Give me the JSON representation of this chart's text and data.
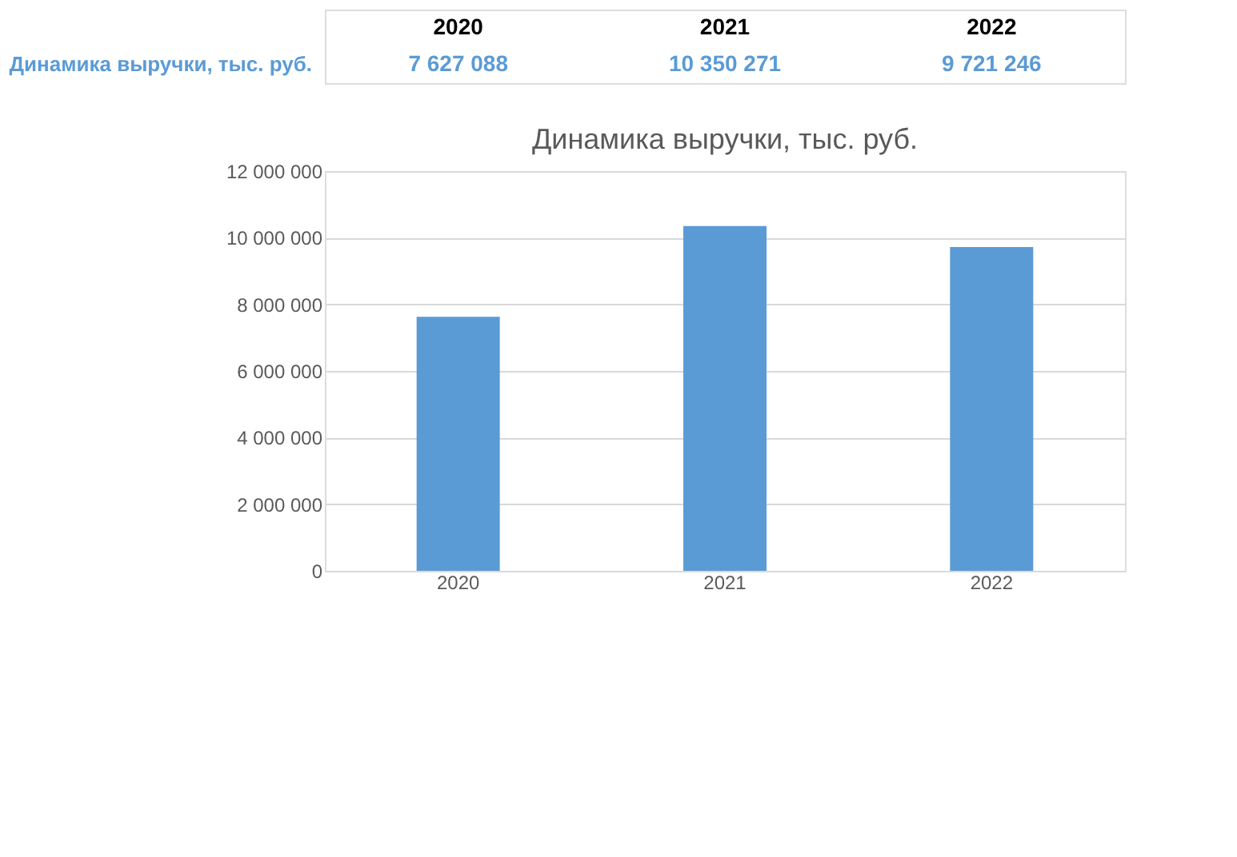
{
  "chart_data": {
    "type": "bar",
    "title": "Динамика выручки, тыс. руб.",
    "annotations": [
      "Динамика выручки, тыс. руб."
    ],
    "categories": [
      "2020",
      "2021",
      "2022"
    ],
    "values": [
      7627088,
      10350271,
      9721246
    ],
    "value_labels": [
      "7 627 088",
      "10 350 271",
      "9 721 246"
    ],
    "color": "#5b9bd5",
    "ylim": [
      0,
      12000000
    ],
    "yticks": [
      {
        "value": 0,
        "label": "0"
      },
      {
        "value": 2000000,
        "label": "2 000 000"
      },
      {
        "value": 4000000,
        "label": "4 000 000"
      },
      {
        "value": 6000000,
        "label": "6 000 000"
      },
      {
        "value": 8000000,
        "label": "8 000 000"
      },
      {
        "value": 10000000,
        "label": "10 000 000"
      },
      {
        "value": 12000000,
        "label": "12 000 000"
      }
    ],
    "grid": "y"
  }
}
